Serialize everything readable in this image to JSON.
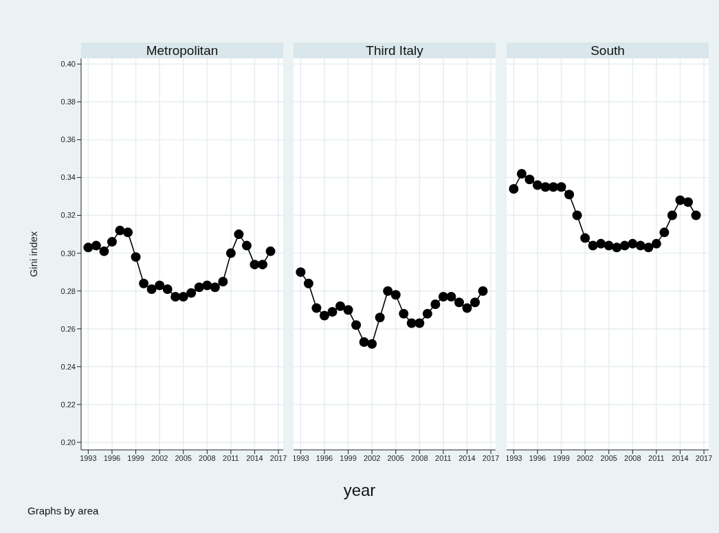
{
  "chart_data": [
    {
      "type": "line",
      "title": "Metropolitan",
      "ylabel": "Gini index",
      "annotations": [
        "Graphs by area"
      ],
      "color": "#000000",
      "marker": "circle",
      "line_style": "solid",
      "grid": true,
      "x": [
        1993,
        1994,
        1995,
        1996,
        1997,
        1998,
        1999,
        2000,
        2001,
        2002,
        2003,
        2004,
        2005,
        2006,
        2007,
        2008,
        2009,
        2010,
        2011,
        2012,
        2013,
        2014,
        2015,
        2016
      ],
      "values": [
        0.303,
        0.304,
        0.301,
        0.306,
        0.312,
        0.311,
        0.298,
        0.284,
        0.281,
        0.283,
        0.281,
        0.277,
        0.277,
        0.279,
        0.282,
        0.283,
        0.282,
        0.285,
        0.3,
        0.31,
        0.304,
        0.294,
        0.294,
        0.301
      ],
      "xlim": [
        1992.1,
        2017.6
      ],
      "xticks": [
        1993,
        1996,
        1999,
        2002,
        2005,
        2008,
        2011,
        2014,
        2017
      ],
      "ylim": [
        0.196,
        0.403
      ],
      "yticks": [
        {
          "value": 0.2,
          "label": "0.20"
        },
        {
          "value": 0.22,
          "label": "0.22"
        },
        {
          "value": 0.24,
          "label": "0.24"
        },
        {
          "value": 0.26,
          "label": "0.26"
        },
        {
          "value": 0.28,
          "label": "0.28"
        },
        {
          "value": 0.3,
          "label": "0.30"
        },
        {
          "value": 0.32,
          "label": "0.32"
        },
        {
          "value": 0.34,
          "label": "0.34"
        },
        {
          "value": 0.36,
          "label": "0.36"
        },
        {
          "value": 0.38,
          "label": "0.38"
        },
        {
          "value": 0.4,
          "label": "0.40"
        }
      ]
    },
    {
      "type": "line",
      "title": "Third Italy",
      "xlabel": "year",
      "color": "#000000",
      "marker": "circle",
      "line_style": "solid",
      "grid": true,
      "tick_labels": "x",
      "x": [
        1993,
        1994,
        1995,
        1996,
        1997,
        1998,
        1999,
        2000,
        2001,
        2002,
        2003,
        2004,
        2005,
        2006,
        2007,
        2008,
        2009,
        2010,
        2011,
        2012,
        2013,
        2014,
        2015,
        2016
      ],
      "values": [
        0.29,
        0.284,
        0.271,
        0.267,
        0.269,
        0.272,
        0.27,
        0.262,
        0.253,
        0.252,
        0.266,
        0.28,
        0.278,
        0.268,
        0.263,
        0.263,
        0.268,
        0.273,
        0.277,
        0.277,
        0.274,
        0.271,
        0.274,
        0.28
      ],
      "xlim": [
        1992.1,
        2017.6
      ],
      "xticks": [
        1993,
        1996,
        1999,
        2002,
        2005,
        2008,
        2011,
        2014,
        2017
      ],
      "ylim": [
        0.196,
        0.403
      ],
      "yticks": [
        0.2,
        0.22,
        0.24,
        0.26,
        0.28,
        0.3,
        0.32,
        0.34,
        0.36,
        0.38,
        0.4
      ]
    },
    {
      "type": "line",
      "title": "South",
      "color": "#000000",
      "marker": "circle",
      "line_style": "solid",
      "grid": true,
      "tick_labels": "x",
      "x": [
        1993,
        1994,
        1995,
        1996,
        1997,
        1998,
        1999,
        2000,
        2001,
        2002,
        2003,
        2004,
        2005,
        2006,
        2007,
        2008,
        2009,
        2010,
        2011,
        2012,
        2013,
        2014,
        2015,
        2016
      ],
      "values": [
        0.334,
        0.342,
        0.339,
        0.336,
        0.335,
        0.335,
        0.335,
        0.331,
        0.32,
        0.308,
        0.304,
        0.305,
        0.304,
        0.303,
        0.304,
        0.305,
        0.304,
        0.303,
        0.305,
        0.311,
        0.32,
        0.328,
        0.327,
        0.32
      ],
      "xlim": [
        1992.1,
        2017.6
      ],
      "xticks": [
        1993,
        1996,
        1999,
        2002,
        2005,
        2008,
        2011,
        2014,
        2017
      ],
      "ylim": [
        0.196,
        0.403
      ],
      "yticks": [
        0.2,
        0.22,
        0.24,
        0.26,
        0.28,
        0.3,
        0.32,
        0.34,
        0.36,
        0.38,
        0.4
      ]
    }
  ]
}
